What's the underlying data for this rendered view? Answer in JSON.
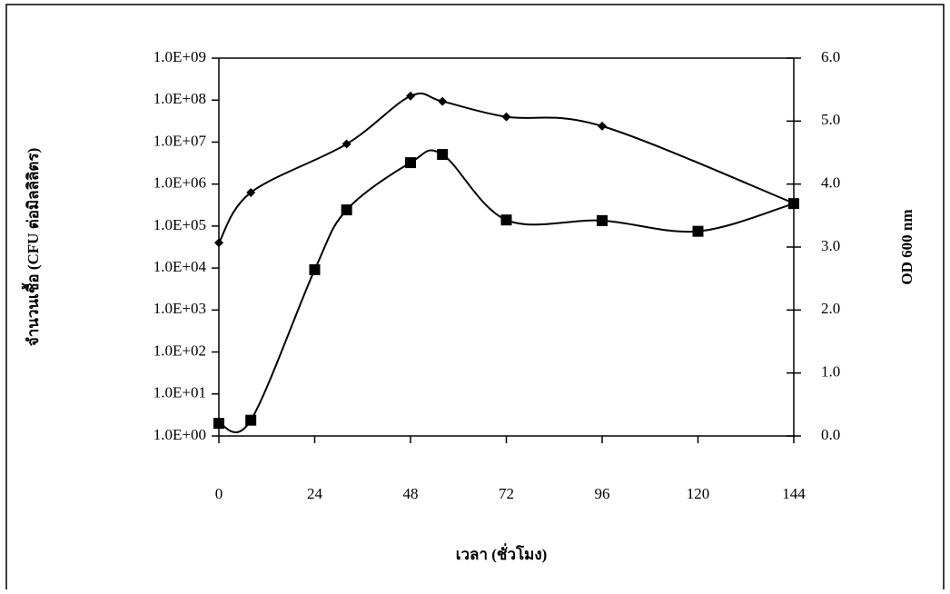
{
  "chart_data": {
    "type": "line",
    "x_label": "เวลา (ชั่วโมง)",
    "y_label": "จำนวนเชื้อ (CFU ต่อมิลลิลิตร)",
    "y2_label": "OD 600 nm",
    "xlim": [
      0,
      144
    ],
    "xticks": [
      0,
      24,
      48,
      72,
      96,
      120,
      144
    ],
    "ylog": true,
    "ylim": [
      1,
      1000000000
    ],
    "yticks": [
      {
        "value": 1,
        "label": "1.0E+00"
      },
      {
        "value": 10,
        "label": "1.0E+01"
      },
      {
        "value": 100,
        "label": "1.0E+02"
      },
      {
        "value": 1000,
        "label": "1.0E+03"
      },
      {
        "value": 10000,
        "label": "1.0E+04"
      },
      {
        "value": 100000,
        "label": "1.0E+05"
      },
      {
        "value": 1000000,
        "label": "1.0E+06"
      },
      {
        "value": 10000000,
        "label": "1.0E+07"
      },
      {
        "value": 100000000,
        "label": "1.0E+08"
      },
      {
        "value": 1000000000,
        "label": "1.0E+09"
      }
    ],
    "y2lim": [
      0,
      6
    ],
    "y2ticks": [
      {
        "value": 0,
        "label": "0.0"
      },
      {
        "value": 1,
        "label": "1.0"
      },
      {
        "value": 2,
        "label": "2.0"
      },
      {
        "value": 3,
        "label": "3.0"
      },
      {
        "value": 4,
        "label": "4.0"
      },
      {
        "value": 5,
        "label": "5.0"
      },
      {
        "value": 6,
        "label": "6.0"
      }
    ],
    "series": [
      {
        "color": "#000000",
        "marker": "diamond",
        "x": [
          0,
          8,
          32,
          48,
          56,
          72,
          96,
          144
        ],
        "values": [
          40000,
          630000,
          9000000,
          125000000,
          93000000,
          40000000,
          24000000,
          350000
        ]
      },
      {
        "color": "#000000",
        "marker": "square",
        "axis": "y2",
        "x": [
          0,
          8,
          24,
          32,
          48,
          56,
          72,
          96,
          120,
          144
        ],
        "values": [
          0.2,
          0.25,
          2.64,
          3.59,
          4.34,
          4.47,
          3.43,
          3.42,
          3.25,
          3.69
        ]
      }
    ]
  }
}
